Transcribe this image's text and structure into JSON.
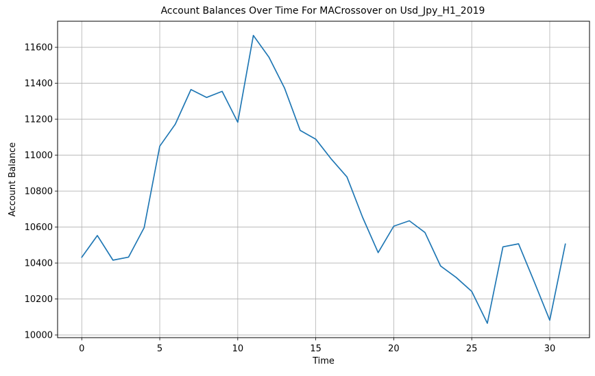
{
  "chart_data": {
    "type": "line",
    "title": "Account Balances Over Time For MACrossover on Usd_Jpy_H1_2019",
    "xlabel": "Time",
    "ylabel": "Account Balance",
    "xlim": [
      -1.55,
      32.55
    ],
    "ylim": [
      9985,
      11745
    ],
    "grid": true,
    "x_ticks": [
      0,
      5,
      10,
      15,
      20,
      25,
      30
    ],
    "x_tick_labels": [
      "0",
      "5",
      "10",
      "15",
      "20",
      "25",
      "30"
    ],
    "y_ticks": [
      10000,
      10200,
      10400,
      10600,
      10800,
      11000,
      11200,
      11400,
      11600
    ],
    "y_tick_labels": [
      "10000",
      "10200",
      "10400",
      "10600",
      "10800",
      "11000",
      "11200",
      "11400",
      "11600"
    ],
    "series": [
      {
        "name": "Account Balance",
        "color": "#1f77b4",
        "x": [
          0,
          1,
          2,
          3,
          4,
          5,
          6,
          7,
          8,
          9,
          10,
          11,
          12,
          13,
          14,
          15,
          16,
          17,
          18,
          19,
          20,
          21,
          22,
          23,
          24,
          25,
          26,
          27,
          28,
          29,
          30,
          31
        ],
        "values": [
          10432,
          10553,
          10416,
          10433,
          10597,
          11050,
          11173,
          11365,
          11321,
          11355,
          11183,
          11666,
          11545,
          11373,
          11138,
          11089,
          10978,
          10879,
          10655,
          10458,
          10605,
          10635,
          10570,
          10384,
          10320,
          10242,
          10065,
          10490,
          10507,
          10297,
          10082,
          10506
        ]
      }
    ]
  }
}
